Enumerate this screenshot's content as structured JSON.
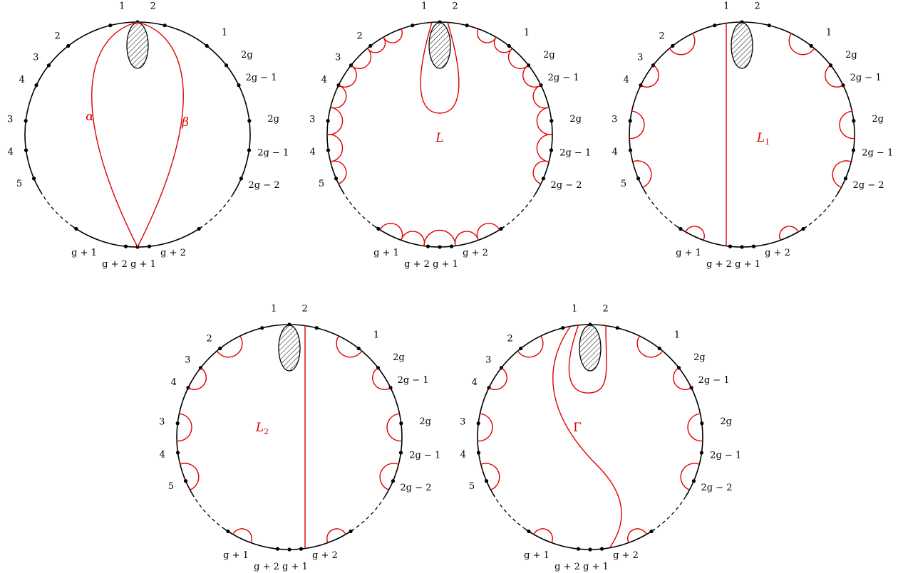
{
  "colors": {
    "curve": "#e00000",
    "boundary": "#000000"
  },
  "labels": {
    "top_left_1": "1",
    "top_right_2": "2",
    "left": [
      "2",
      "3",
      "4",
      "3",
      "4",
      "5"
    ],
    "right": [
      "1",
      "2g",
      "2g − 1",
      "2g",
      "2g − 1",
      "2g − 2"
    ],
    "bottom": [
      "g + 1",
      "g + 2",
      "g + 1",
      "g + 2"
    ]
  },
  "panels": [
    {
      "id": "alpha-beta",
      "curve_labels": [
        "α",
        "β"
      ]
    },
    {
      "id": "L",
      "curve_labels": [
        "L"
      ]
    },
    {
      "id": "L1",
      "curve_labels": [
        "L",
        "1"
      ]
    },
    {
      "id": "L2",
      "curve_labels": [
        "L",
        "2"
      ]
    },
    {
      "id": "Gamma",
      "curve_labels": [
        "Γ"
      ]
    }
  ]
}
